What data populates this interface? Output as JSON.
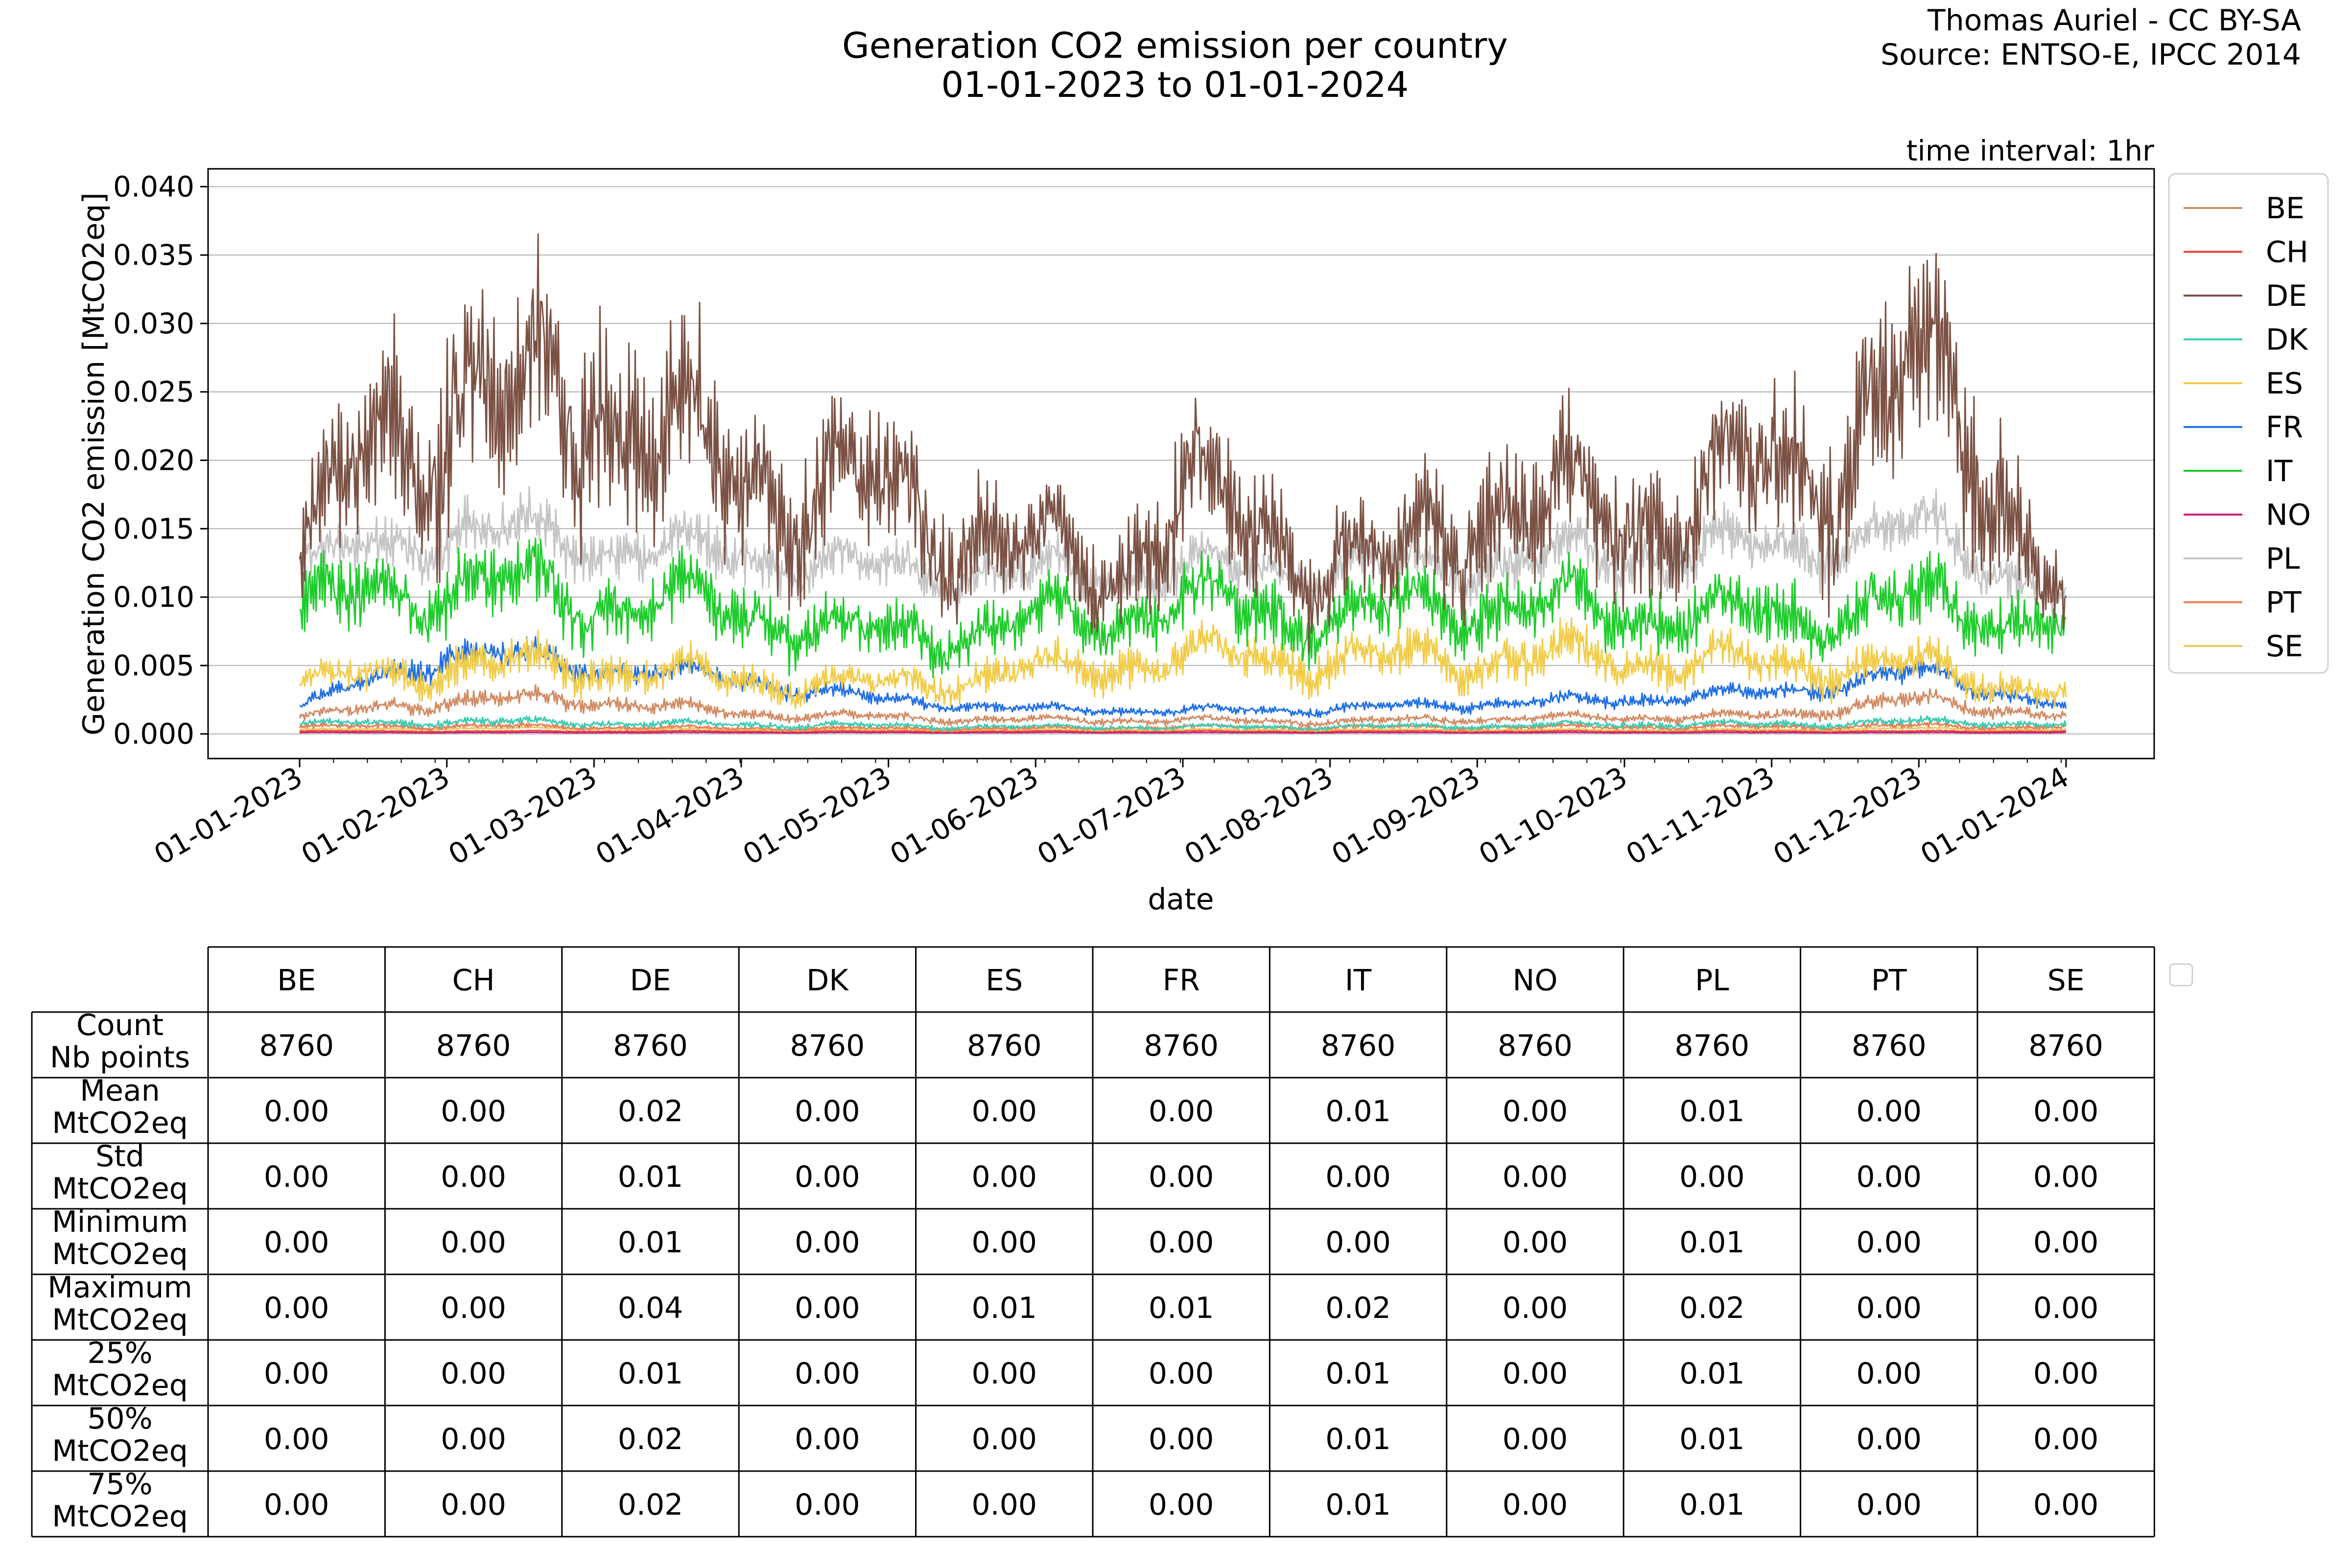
{
  "header": {
    "title_line1": "Generation CO2 emission per country",
    "title_line2": "01-01-2023 to 01-01-2024",
    "credit_line1": "Thomas Auriel - CC BY-SA",
    "credit_line2": "Source: ENTSO-E, IPCC 2014",
    "time_interval": "time interval: 1hr"
  },
  "colors": {
    "BE": "#d28b63",
    "CH": "#e8423a",
    "DE": "#7b5143",
    "DK": "#3ccbb0",
    "ES": "#f2cc48",
    "FR": "#1f6fe5",
    "IT": "#1fcc2c",
    "NO": "#c8197b",
    "PL": "#c4c4c4",
    "PT": "#ea7b52",
    "SE": "#f0c65c"
  },
  "chart_data": {
    "type": "line",
    "xlabel": "date",
    "ylabel": "Generation CO2 emission [MtCO2eq]",
    "xlim": [
      "2023-01-01",
      "2024-01-01"
    ],
    "ylim": [
      -0.0018,
      0.0413
    ],
    "grid": "horizontal",
    "legend_placement": "right, outside plot",
    "x_ticks": [
      "01-01-2023",
      "01-02-2023",
      "01-03-2023",
      "01-04-2023",
      "01-05-2023",
      "01-06-2023",
      "01-07-2023",
      "01-08-2023",
      "01-09-2023",
      "01-10-2023",
      "01-11-2023",
      "01-12-2023",
      "01-01-2024"
    ],
    "y_ticks": [
      "0.000",
      "0.005",
      "0.010",
      "0.015",
      "0.020",
      "0.025",
      "0.030",
      "0.035",
      "0.040"
    ],
    "series": [
      {
        "name": "BE",
        "x": [
          "2023-01-01",
          "2023-02-01",
          "2023-03-01",
          "2023-04-01",
          "2023-05-01",
          "2023-06-01",
          "2023-07-01",
          "2023-08-01",
          "2023-09-01",
          "2023-10-01",
          "2023-11-01",
          "2023-12-01",
          "2024-01-01"
        ],
        "y": [
          0.0012,
          0.0025,
          0.0025,
          0.0015,
          0.0012,
          0.001,
          0.001,
          0.0009,
          0.0011,
          0.0012,
          0.0013,
          0.0025,
          0.0013
        ]
      },
      {
        "name": "CH",
        "x": [
          "2023-01-01",
          "2023-02-01",
          "2023-03-01",
          "2023-04-01",
          "2023-05-01",
          "2023-06-01",
          "2023-07-01",
          "2023-08-01",
          "2023-09-01",
          "2023-10-01",
          "2023-11-01",
          "2023-12-01",
          "2024-01-01"
        ],
        "y": [
          0.0002,
          0.0002,
          0.0002,
          0.0002,
          0.0002,
          0.0002,
          0.0002,
          0.0002,
          0.0002,
          0.0002,
          0.0002,
          0.0002,
          0.0002
        ]
      },
      {
        "name": "DE",
        "x": [
          "2023-01-01",
          "2023-01-15",
          "2023-02-01",
          "2023-02-15",
          "2023-03-01",
          "2023-03-15",
          "2023-04-01",
          "2023-04-15",
          "2023-05-01",
          "2023-05-15",
          "2023-06-01",
          "2023-06-15",
          "2023-07-01",
          "2023-07-15",
          "2023-08-01",
          "2023-08-15",
          "2023-09-01",
          "2023-09-15",
          "2023-10-01",
          "2023-10-15",
          "2023-11-01",
          "2023-11-15",
          "2023-12-01",
          "2023-12-15",
          "2024-01-01"
        ],
        "y": [
          0.012,
          0.02,
          0.026,
          0.022,
          0.027,
          0.022,
          0.019,
          0.018,
          0.017,
          0.016,
          0.013,
          0.012,
          0.017,
          0.015,
          0.013,
          0.012,
          0.017,
          0.016,
          0.016,
          0.017,
          0.019,
          0.021,
          0.025,
          0.022,
          0.009
        ]
      },
      {
        "name": "DK",
        "x": [
          "2023-01-01",
          "2023-02-01",
          "2023-03-01",
          "2023-04-01",
          "2023-05-01",
          "2023-06-01",
          "2023-07-01",
          "2023-08-01",
          "2023-09-01",
          "2023-10-01",
          "2023-11-01",
          "2023-12-01",
          "2024-01-01"
        ],
        "y": [
          0.0007,
          0.0009,
          0.0008,
          0.0007,
          0.0006,
          0.0005,
          0.0005,
          0.0005,
          0.0006,
          0.0007,
          0.0007,
          0.0009,
          0.0007
        ]
      },
      {
        "name": "ES",
        "x": [
          "2023-01-01",
          "2023-02-01",
          "2023-03-01",
          "2023-04-01",
          "2023-05-01",
          "2023-06-01",
          "2023-07-01",
          "2023-08-01",
          "2023-09-01",
          "2023-10-01",
          "2023-11-01",
          "2023-12-01",
          "2024-01-01"
        ],
        "y": [
          0.0035,
          0.005,
          0.005,
          0.004,
          0.0035,
          0.0045,
          0.0055,
          0.0055,
          0.0055,
          0.0055,
          0.005,
          0.005,
          0.003
        ]
      },
      {
        "name": "FR",
        "x": [
          "2023-01-01",
          "2023-02-01",
          "2023-03-01",
          "2023-04-01",
          "2023-05-01",
          "2023-06-01",
          "2023-07-01",
          "2023-08-01",
          "2023-09-01",
          "2023-10-01",
          "2023-11-01",
          "2023-12-01",
          "2024-01-01"
        ],
        "y": [
          0.002,
          0.006,
          0.005,
          0.004,
          0.0025,
          0.0018,
          0.0017,
          0.0018,
          0.0022,
          0.0025,
          0.003,
          0.0045,
          0.002
        ]
      },
      {
        "name": "IT",
        "x": [
          "2023-01-01",
          "2023-02-01",
          "2023-03-01",
          "2023-04-01",
          "2023-05-01",
          "2023-06-01",
          "2023-07-01",
          "2023-08-01",
          "2023-09-01",
          "2023-10-01",
          "2023-11-01",
          "2023-12-01",
          "2024-01-01"
        ],
        "y": [
          0.009,
          0.011,
          0.01,
          0.009,
          0.007,
          0.008,
          0.0095,
          0.0085,
          0.0095,
          0.009,
          0.0085,
          0.0095,
          0.008
        ]
      },
      {
        "name": "NO",
        "x": [
          "2023-01-01",
          "2023-02-01",
          "2023-03-01",
          "2023-04-01",
          "2023-05-01",
          "2023-06-01",
          "2023-07-01",
          "2023-08-01",
          "2023-09-01",
          "2023-10-01",
          "2023-11-01",
          "2023-12-01",
          "2024-01-01"
        ],
        "y": [
          0.0001,
          0.0001,
          0.0001,
          0.0001,
          0.0001,
          0.0001,
          0.0001,
          0.0001,
          0.0001,
          0.0001,
          0.0001,
          0.0001,
          0.0001
        ]
      },
      {
        "name": "PL",
        "x": [
          "2023-01-01",
          "2023-02-01",
          "2023-03-01",
          "2023-04-01",
          "2023-05-01",
          "2023-06-01",
          "2023-07-01",
          "2023-08-01",
          "2023-09-01",
          "2023-10-01",
          "2023-11-01",
          "2023-12-01",
          "2024-01-01"
        ],
        "y": [
          0.012,
          0.015,
          0.014,
          0.013,
          0.012,
          0.0115,
          0.012,
          0.012,
          0.0125,
          0.013,
          0.0135,
          0.015,
          0.01
        ]
      },
      {
        "name": "PT",
        "x": [
          "2023-01-01",
          "2023-02-01",
          "2023-03-01",
          "2023-04-01",
          "2023-05-01",
          "2023-06-01",
          "2023-07-01",
          "2023-08-01",
          "2023-09-01",
          "2023-10-01",
          "2023-11-01",
          "2023-12-01",
          "2024-01-01"
        ],
        "y": [
          0.0005,
          0.0006,
          0.0005,
          0.0004,
          0.0004,
          0.0004,
          0.0005,
          0.0005,
          0.0005,
          0.0005,
          0.0005,
          0.0006,
          0.0005
        ]
      },
      {
        "name": "SE",
        "x": [
          "2023-01-01",
          "2023-02-01",
          "2023-03-01",
          "2023-04-01",
          "2023-05-01",
          "2023-06-01",
          "2023-07-01",
          "2023-08-01",
          "2023-09-01",
          "2023-10-01",
          "2023-11-01",
          "2023-12-01",
          "2024-01-01"
        ],
        "y": [
          0.0003,
          0.0004,
          0.0004,
          0.0003,
          0.0003,
          0.0003,
          0.0003,
          0.0003,
          0.0003,
          0.0003,
          0.0003,
          0.0004,
          0.0003
        ]
      }
    ]
  },
  "stats_table": {
    "columns": [
      "BE",
      "CH",
      "DE",
      "DK",
      "ES",
      "FR",
      "IT",
      "NO",
      "PL",
      "PT",
      "SE"
    ],
    "rows": [
      {
        "label1": "Count",
        "label2": "Nb points",
        "values": [
          "8760",
          "8760",
          "8760",
          "8760",
          "8760",
          "8760",
          "8760",
          "8760",
          "8760",
          "8760",
          "8760"
        ]
      },
      {
        "label1": "Mean",
        "label2": "MtCO2eq",
        "values": [
          "0.00",
          "0.00",
          "0.02",
          "0.00",
          "0.00",
          "0.00",
          "0.01",
          "0.00",
          "0.01",
          "0.00",
          "0.00"
        ]
      },
      {
        "label1": "Std",
        "label2": "MtCO2eq",
        "values": [
          "0.00",
          "0.00",
          "0.01",
          "0.00",
          "0.00",
          "0.00",
          "0.00",
          "0.00",
          "0.00",
          "0.00",
          "0.00"
        ]
      },
      {
        "label1": "Minimum",
        "label2": "MtCO2eq",
        "values": [
          "0.00",
          "0.00",
          "0.01",
          "0.00",
          "0.00",
          "0.00",
          "0.00",
          "0.00",
          "0.01",
          "0.00",
          "0.00"
        ]
      },
      {
        "label1": "Maximum",
        "label2": "MtCO2eq",
        "values": [
          "0.00",
          "0.00",
          "0.04",
          "0.00",
          "0.01",
          "0.01",
          "0.02",
          "0.00",
          "0.02",
          "0.00",
          "0.00"
        ]
      },
      {
        "label1": "25%",
        "label2": "MtCO2eq",
        "values": [
          "0.00",
          "0.00",
          "0.01",
          "0.00",
          "0.00",
          "0.00",
          "0.01",
          "0.00",
          "0.01",
          "0.00",
          "0.00"
        ]
      },
      {
        "label1": "50%",
        "label2": "MtCO2eq",
        "values": [
          "0.00",
          "0.00",
          "0.02",
          "0.00",
          "0.00",
          "0.00",
          "0.01",
          "0.00",
          "0.01",
          "0.00",
          "0.00"
        ]
      },
      {
        "label1": "75%",
        "label2": "MtCO2eq",
        "values": [
          "0.00",
          "0.00",
          "0.02",
          "0.00",
          "0.00",
          "0.00",
          "0.01",
          "0.00",
          "0.01",
          "0.00",
          "0.00"
        ]
      }
    ]
  }
}
